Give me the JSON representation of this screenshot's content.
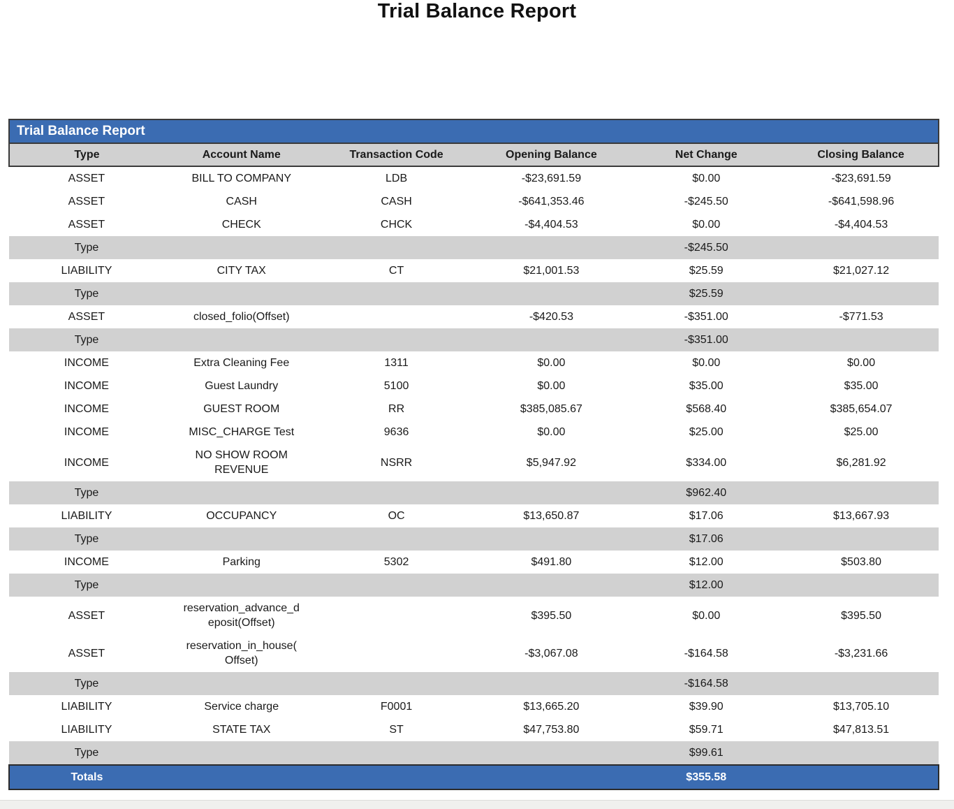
{
  "page": {
    "title": "Trial Balance Report"
  },
  "report": {
    "header_title": "Trial Balance Report",
    "columns": [
      "Type",
      "Account Name",
      "Transaction Code",
      "Opening Balance",
      "Net Change",
      "Closing Balance"
    ],
    "rows": [
      {
        "kind": "data",
        "type": "ASSET",
        "account_name": "BILL TO COMPANY",
        "transaction_code": "LDB",
        "opening_balance": "-$23,691.59",
        "net_change": "$0.00",
        "closing_balance": "-$23,691.59"
      },
      {
        "kind": "data",
        "type": "ASSET",
        "account_name": "CASH",
        "transaction_code": "CASH",
        "opening_balance": "-$641,353.46",
        "net_change": "-$245.50",
        "closing_balance": "-$641,598.96"
      },
      {
        "kind": "data",
        "type": "ASSET",
        "account_name": "CHECK",
        "transaction_code": "CHCK",
        "opening_balance": "-$4,404.53",
        "net_change": "$0.00",
        "closing_balance": "-$4,404.53"
      },
      {
        "kind": "subtotal",
        "label": "Type",
        "net_change": "-$245.50"
      },
      {
        "kind": "data",
        "type": "LIABILITY",
        "account_name": "CITY TAX",
        "transaction_code": "CT",
        "opening_balance": "$21,001.53",
        "net_change": "$25.59",
        "closing_balance": "$21,027.12"
      },
      {
        "kind": "subtotal",
        "label": "Type",
        "net_change": "$25.59"
      },
      {
        "kind": "data",
        "type": "ASSET",
        "account_name": "closed_folio(Offset)",
        "transaction_code": "",
        "opening_balance": "-$420.53",
        "net_change": "-$351.00",
        "closing_balance": "-$771.53"
      },
      {
        "kind": "subtotal",
        "label": "Type",
        "net_change": "-$351.00"
      },
      {
        "kind": "data",
        "type": "INCOME",
        "account_name": "Extra Cleaning Fee",
        "transaction_code": "1311",
        "opening_balance": "$0.00",
        "net_change": "$0.00",
        "closing_balance": "$0.00"
      },
      {
        "kind": "data",
        "type": "INCOME",
        "account_name": "Guest Laundry",
        "transaction_code": "5100",
        "opening_balance": "$0.00",
        "net_change": "$35.00",
        "closing_balance": "$35.00"
      },
      {
        "kind": "data",
        "type": "INCOME",
        "account_name": "GUEST ROOM",
        "transaction_code": "RR",
        "opening_balance": "$385,085.67",
        "net_change": "$568.40",
        "closing_balance": "$385,654.07"
      },
      {
        "kind": "data",
        "type": "INCOME",
        "account_name": "MISC_CHARGE Test",
        "transaction_code": "9636",
        "opening_balance": "$0.00",
        "net_change": "$25.00",
        "closing_balance": "$25.00"
      },
      {
        "kind": "data",
        "type": "INCOME",
        "account_name": "NO SHOW ROOM REVENUE",
        "transaction_code": "NSRR",
        "opening_balance": "$5,947.92",
        "net_change": "$334.00",
        "closing_balance": "$6,281.92"
      },
      {
        "kind": "subtotal",
        "label": "Type",
        "net_change": "$962.40"
      },
      {
        "kind": "data",
        "type": "LIABILITY",
        "account_name": "OCCUPANCY",
        "transaction_code": "OC",
        "opening_balance": "$13,650.87",
        "net_change": "$17.06",
        "closing_balance": "$13,667.93"
      },
      {
        "kind": "subtotal",
        "label": "Type",
        "net_change": "$17.06"
      },
      {
        "kind": "data",
        "type": "INCOME",
        "account_name": "Parking",
        "transaction_code": "5302",
        "opening_balance": "$491.80",
        "net_change": "$12.00",
        "closing_balance": "$503.80"
      },
      {
        "kind": "subtotal",
        "label": "Type",
        "net_change": "$12.00"
      },
      {
        "kind": "data",
        "type": "ASSET",
        "account_name": "reservation_advance_deposit(Offset)",
        "transaction_code": "",
        "opening_balance": "$395.50",
        "net_change": "$0.00",
        "closing_balance": "$395.50"
      },
      {
        "kind": "data",
        "type": "ASSET",
        "account_name": "reservation_in_house(Offset)",
        "transaction_code": "",
        "opening_balance": "-$3,067.08",
        "net_change": "-$164.58",
        "closing_balance": "-$3,231.66"
      },
      {
        "kind": "subtotal",
        "label": "Type",
        "net_change": "-$164.58"
      },
      {
        "kind": "data",
        "type": "LIABILITY",
        "account_name": "Service charge",
        "transaction_code": "F0001",
        "opening_balance": "$13,665.20",
        "net_change": "$39.90",
        "closing_balance": "$13,705.10"
      },
      {
        "kind": "data",
        "type": "LIABILITY",
        "account_name": "STATE TAX",
        "transaction_code": "ST",
        "opening_balance": "$47,753.80",
        "net_change": "$59.71",
        "closing_balance": "$47,813.51"
      },
      {
        "kind": "subtotal",
        "label": "Type",
        "net_change": "$99.61"
      }
    ],
    "totals": {
      "label": "Totals",
      "net_change": "$355.58"
    }
  },
  "colors": {
    "accent_blue": "#3b6cb2",
    "subtotal_gray": "#d1d1d1",
    "border_dark": "#3a3a3a",
    "page_bottom_gray": "#f0f0ee"
  }
}
